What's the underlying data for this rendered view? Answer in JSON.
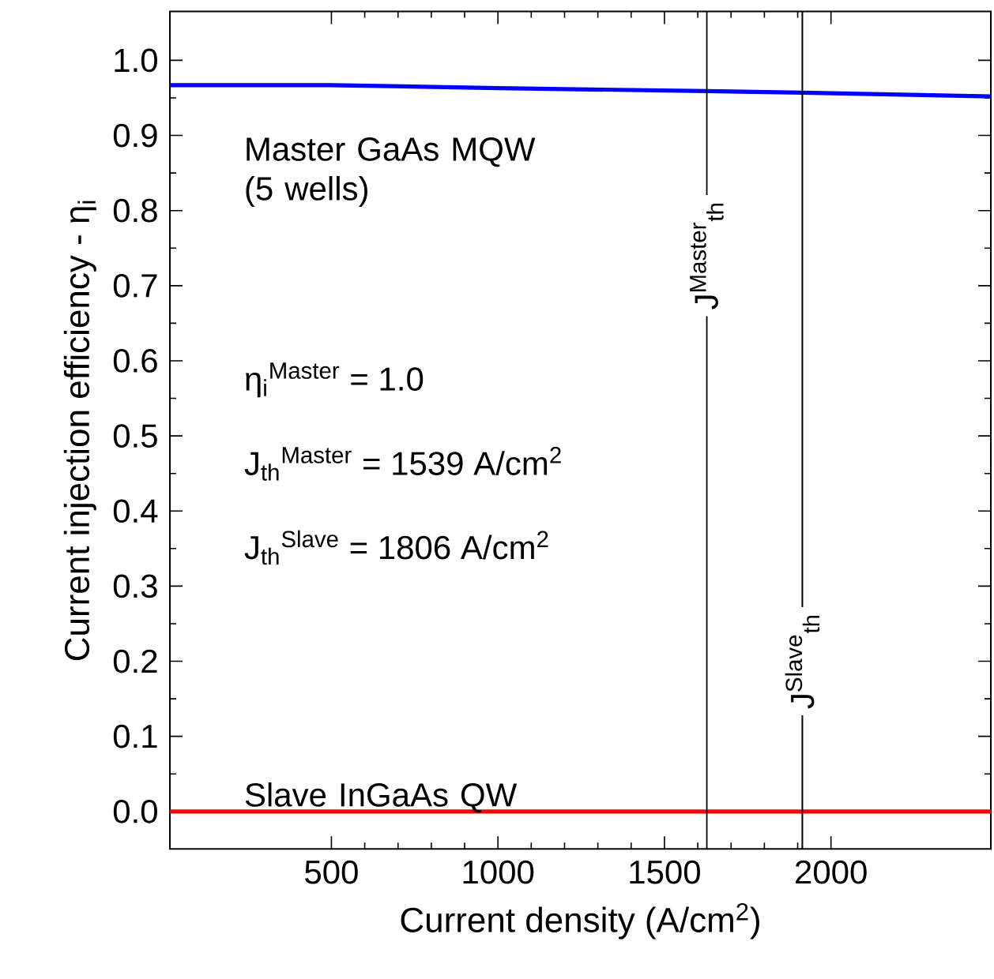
{
  "chart_data": {
    "type": "line",
    "xlabel": "Current density (A/cm$^{2}$)",
    "ylabel": "Current injection efficiency - η$_{i}$",
    "xlim": [
      15,
      2480
    ],
    "ylim": [
      -0.05,
      1.065
    ],
    "xticks": [
      500,
      1000,
      1500,
      2000
    ],
    "yticks": [
      {
        "value": 0,
        "label": "0.0"
      },
      {
        "value": 0.1,
        "label": "0.1"
      },
      {
        "value": 0.2,
        "label": "0.2"
      },
      {
        "value": 0.3,
        "label": "0.3"
      },
      {
        "value": 0.4,
        "label": "0.4"
      },
      {
        "value": 0.5,
        "label": "0.5"
      },
      {
        "value": 0.6,
        "label": "0.6"
      },
      {
        "value": 0.7,
        "label": "0.7"
      },
      {
        "value": 0.8,
        "label": "0.8"
      },
      {
        "value": 0.9,
        "label": "0.9"
      },
      {
        "value": 1,
        "label": "1.0"
      }
    ],
    "series": [
      {
        "name": "Master GaAs MQW (5 wells)",
        "color": "#0000ff",
        "x": [
          15,
          500,
          1000,
          1627,
          1914,
          2480
        ],
        "values": [
          0.967,
          0.967,
          0.963,
          0.959,
          0.957,
          0.952
        ]
      },
      {
        "name": "Slave InGaAs QW",
        "color": "#ff0000",
        "x": [
          15,
          2480
        ],
        "values": [
          0,
          0
        ]
      }
    ],
    "ref_lines": [
      {
        "axis": "x",
        "value": 1627,
        "label": "J$^{Master}$$_{th}$"
      },
      {
        "axis": "x",
        "value": 1914,
        "label": "J$^{Slave}$$_{th}$"
      }
    ],
    "annotations": [
      "η$_{i}$$^{Master}$ = 1.0",
      "J$_{th}$$^{Master}$ = 1539 A/cm$^{2}$",
      "J$_{th}$$^{Slave}$ = 1806 A/cm$^{2}$"
    ],
    "grid": false,
    "legend": false,
    "marker": "none",
    "line_style": "solid"
  }
}
